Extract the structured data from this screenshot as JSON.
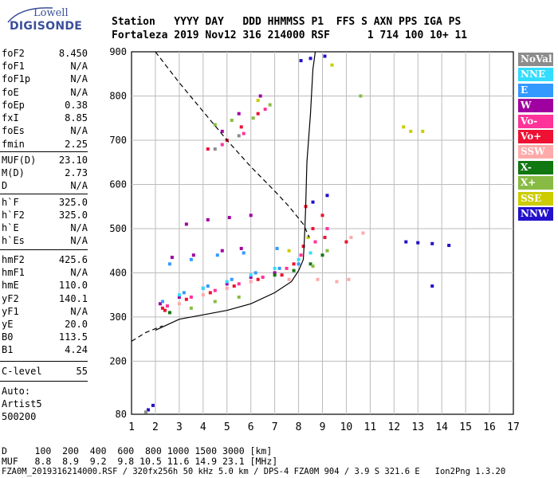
{
  "logo": {
    "line1": "Lowell",
    "line2": "DIGISONDE"
  },
  "header": {
    "line1": "Station   YYYY DAY   DDD HHMMSS P1  FFS S AXN PPS IGA PS",
    "line2": "Fortaleza 2019 Nov12 316 214000 RSF      1 714 100 10+ 11"
  },
  "params": [
    {
      "name": "foF2",
      "value": "8.450"
    },
    {
      "name": "foF1",
      "value": "N/A"
    },
    {
      "name": "foF1p",
      "value": "N/A"
    },
    {
      "name": "foE",
      "value": "N/A"
    },
    {
      "name": "foEp",
      "value": "0.38"
    },
    {
      "name": "fxI",
      "value": "8.85"
    },
    {
      "name": "foEs",
      "value": "N/A"
    },
    {
      "name": "fmin",
      "value": "2.25"
    },
    {
      "name": "MUF(D)",
      "value": "23.10"
    },
    {
      "name": "M(D)",
      "value": "2.73"
    },
    {
      "name": "D",
      "value": "N/A"
    },
    {
      "name": "h`F",
      "value": "325.0"
    },
    {
      "name": "h`F2",
      "value": "325.0"
    },
    {
      "name": "h`E",
      "value": "N/A"
    },
    {
      "name": "h`Es",
      "value": "N/A"
    },
    {
      "name": "hmF2",
      "value": "425.6"
    },
    {
      "name": "hmF1",
      "value": "N/A"
    },
    {
      "name": "hmE",
      "value": "110.0"
    },
    {
      "name": "yF2",
      "value": "140.1"
    },
    {
      "name": "yF1",
      "value": "N/A"
    },
    {
      "name": "yE",
      "value": "20.0"
    },
    {
      "name": "B0",
      "value": "113.5"
    },
    {
      "name": "B1",
      "value": "4.24"
    },
    {
      "name": "C-level",
      "value": "55"
    }
  ],
  "side": {
    "auto": "Auto:",
    "artist": "Artist5",
    "code": "500200"
  },
  "legend": [
    {
      "label": "NoVal",
      "color": "#8c8c8c"
    },
    {
      "label": "NNE",
      "color": "#33ddff"
    },
    {
      "label": "E",
      "color": "#3399ff"
    },
    {
      "label": "W",
      "color": "#a000a0"
    },
    {
      "label": "Vo-",
      "color": "#ff3399"
    },
    {
      "label": "Vo+",
      "color": "#ee1133"
    },
    {
      "label": "SSW",
      "color": "#ffaaaa"
    },
    {
      "label": "X-",
      "color": "#117711"
    },
    {
      "label": "X+",
      "color": "#88bb44"
    },
    {
      "label": "SSE",
      "color": "#cccc00"
    },
    {
      "label": "NNW",
      "color": "#2211cc"
    }
  ],
  "footer": {
    "line1": "D     100  200  400  600  800 1000 1500 3000 [km]",
    "line2": "MUF   8.8  8.9  9.2  9.8 10.5 11.6 14.9 23.1 [MHz]",
    "line3": "FZA0M_2019316214000.RSF / 320fx256h 50 kHz 5.0 km / DPS-4 FZA0M 904 / 3.9 S 321.6 E   Ion2Png 1.3.20"
  },
  "chart_data": {
    "type": "scatter",
    "xlim": [
      1,
      17
    ],
    "ylim": [
      80,
      900
    ],
    "x_ticks": [
      1,
      2,
      3,
      4,
      5,
      6,
      7,
      8,
      9,
      10,
      11,
      12,
      13,
      14,
      15,
      16,
      17
    ],
    "y_ticks": [
      80,
      200,
      300,
      400,
      500,
      600,
      700,
      800,
      900
    ],
    "grid": true,
    "series": [
      {
        "color": "#a000a0",
        "points": [
          [
            2.2,
            330
          ],
          [
            3,
            345
          ],
          [
            4,
            365
          ],
          [
            5,
            375
          ],
          [
            6,
            390
          ],
          [
            7,
            400
          ],
          [
            2.7,
            435
          ],
          [
            3.6,
            440
          ],
          [
            4.8,
            450
          ],
          [
            5.6,
            455
          ],
          [
            3.3,
            510
          ],
          [
            4.2,
            520
          ],
          [
            5.1,
            525
          ],
          [
            6,
            530
          ],
          [
            4.8,
            720
          ],
          [
            5.5,
            760
          ],
          [
            6.4,
            800
          ]
        ]
      },
      {
        "color": "#3399ff",
        "points": [
          [
            2.3,
            335
          ],
          [
            3.2,
            355
          ],
          [
            4.2,
            370
          ],
          [
            5.2,
            385
          ],
          [
            6.2,
            400
          ],
          [
            7.2,
            410
          ],
          [
            8,
            420
          ],
          [
            2.6,
            420
          ],
          [
            3.5,
            430
          ],
          [
            4.6,
            440
          ],
          [
            5.7,
            445
          ],
          [
            7.1,
            455
          ]
        ]
      },
      {
        "color": "#33ddff",
        "points": [
          [
            3,
            350
          ],
          [
            4,
            365
          ],
          [
            5,
            380
          ],
          [
            6,
            395
          ],
          [
            7,
            410
          ],
          [
            8,
            430
          ],
          [
            8.5,
            445
          ]
        ]
      },
      {
        "color": "#ee1133",
        "points": [
          [
            2.4,
            315
          ],
          [
            3.3,
            340
          ],
          [
            4.3,
            355
          ],
          [
            5.3,
            370
          ],
          [
            6.3,
            385
          ],
          [
            7.3,
            395
          ],
          [
            7.8,
            420
          ],
          [
            8.2,
            460
          ],
          [
            8.6,
            500
          ],
          [
            9,
            530
          ],
          [
            8.3,
            550
          ],
          [
            9.1,
            480
          ],
          [
            10,
            470
          ],
          [
            4.2,
            680
          ],
          [
            5,
            700
          ],
          [
            5.6,
            730
          ],
          [
            6.3,
            760
          ],
          [
            2.3,
            320
          ]
        ]
      },
      {
        "color": "#ff3399",
        "points": [
          [
            2.5,
            325
          ],
          [
            3.5,
            345
          ],
          [
            4.5,
            360
          ],
          [
            5.5,
            375
          ],
          [
            6.5,
            390
          ],
          [
            7.5,
            410
          ],
          [
            8.1,
            440
          ],
          [
            8.7,
            470
          ],
          [
            9.2,
            500
          ],
          [
            4.8,
            690
          ],
          [
            5.7,
            715
          ],
          [
            6.6,
            770
          ]
        ]
      },
      {
        "color": "#ffaaaa",
        "points": [
          [
            3,
            330
          ],
          [
            4,
            350
          ],
          [
            5,
            365
          ],
          [
            6,
            380
          ],
          [
            7.6,
            385
          ],
          [
            8.8,
            385
          ],
          [
            10.2,
            480
          ],
          [
            10.7,
            490
          ],
          [
            9.6,
            380
          ],
          [
            10.1,
            385
          ]
        ]
      },
      {
        "color": "#117711",
        "points": [
          [
            7,
            395
          ],
          [
            7.8,
            405
          ],
          [
            8.5,
            420
          ],
          [
            9,
            440
          ],
          [
            2.6,
            310
          ]
        ]
      },
      {
        "color": "#88bb44",
        "points": [
          [
            3.5,
            320
          ],
          [
            4.5,
            335
          ],
          [
            5.5,
            345
          ],
          [
            8.6,
            415
          ],
          [
            9.2,
            450
          ],
          [
            4.5,
            735
          ],
          [
            5.2,
            745
          ],
          [
            6.1,
            750
          ],
          [
            6.8,
            780
          ],
          [
            10.6,
            800
          ]
        ]
      },
      {
        "color": "#cccc00",
        "points": [
          [
            7.6,
            450
          ],
          [
            8.4,
            480
          ],
          [
            9.4,
            870
          ],
          [
            12.4,
            730
          ],
          [
            12.7,
            720
          ],
          [
            13.2,
            720
          ],
          [
            6.3,
            790
          ]
        ]
      },
      {
        "color": "#2211cc",
        "points": [
          [
            8.1,
            880
          ],
          [
            8.5,
            885
          ],
          [
            9.1,
            890
          ],
          [
            8.6,
            560
          ],
          [
            9.2,
            575
          ],
          [
            12.5,
            470
          ],
          [
            13,
            468
          ],
          [
            13.6,
            466
          ],
          [
            14.3,
            462
          ],
          [
            13.6,
            370
          ],
          [
            1.7,
            90
          ],
          [
            1.9,
            100
          ]
        ]
      },
      {
        "color": "#8c8c8c",
        "points": [
          [
            4.5,
            680
          ],
          [
            5.5,
            710
          ],
          [
            1.6,
            85
          ]
        ]
      }
    ],
    "lines": [
      {
        "style": "solid",
        "points": [
          [
            2,
            270
          ],
          [
            3,
            295
          ],
          [
            4,
            305
          ],
          [
            5,
            315
          ],
          [
            6,
            330
          ],
          [
            7,
            355
          ],
          [
            7.7,
            380
          ],
          [
            8,
            405
          ],
          [
            8.2,
            430
          ],
          [
            8.25,
            480
          ],
          [
            8.3,
            550
          ],
          [
            8.35,
            650
          ],
          [
            8.5,
            760
          ],
          [
            8.6,
            860
          ],
          [
            8.7,
            900
          ]
        ]
      },
      {
        "style": "dashed",
        "points": [
          [
            1,
            245
          ],
          [
            1.6,
            265
          ],
          [
            2.3,
            280
          ],
          [
            2,
            900
          ],
          [
            3,
            830
          ],
          [
            4,
            765
          ],
          [
            5,
            700
          ],
          [
            6,
            640
          ],
          [
            7,
            585
          ],
          [
            7.6,
            550
          ],
          [
            8.2,
            510
          ],
          [
            8.45,
            480
          ]
        ]
      }
    ]
  }
}
